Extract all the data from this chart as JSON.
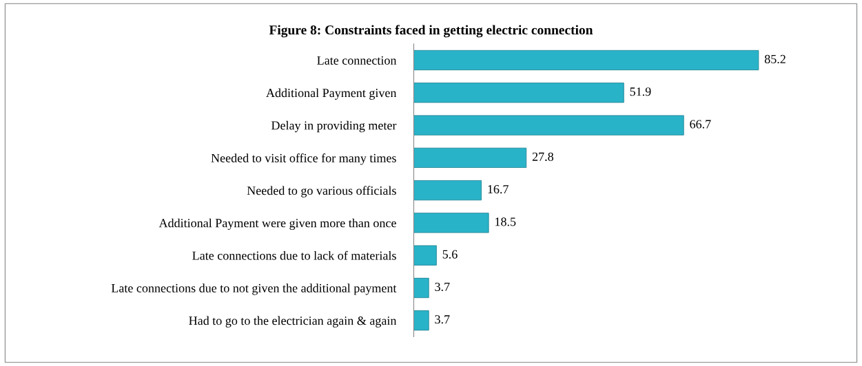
{
  "chart_data": {
    "type": "bar",
    "orientation": "horizontal",
    "title": "Figure 8: Constraints faced in getting electric connection",
    "categories": [
      "Late connection",
      "Additional Payment given",
      "Delay in providing meter",
      "Needed to visit office for many times",
      "Needed to go various officials",
      "Additional Payment were given more than once",
      "Late connections due to lack of materials",
      "Late connections due to not given the additional payment",
      "Had to go to the electrician again & again"
    ],
    "values": [
      85.2,
      51.9,
      66.7,
      27.8,
      16.7,
      18.5,
      5.6,
      3.7,
      3.7
    ],
    "color": "#29b3c9",
    "data_labels": true,
    "grid": false,
    "legend": false
  }
}
